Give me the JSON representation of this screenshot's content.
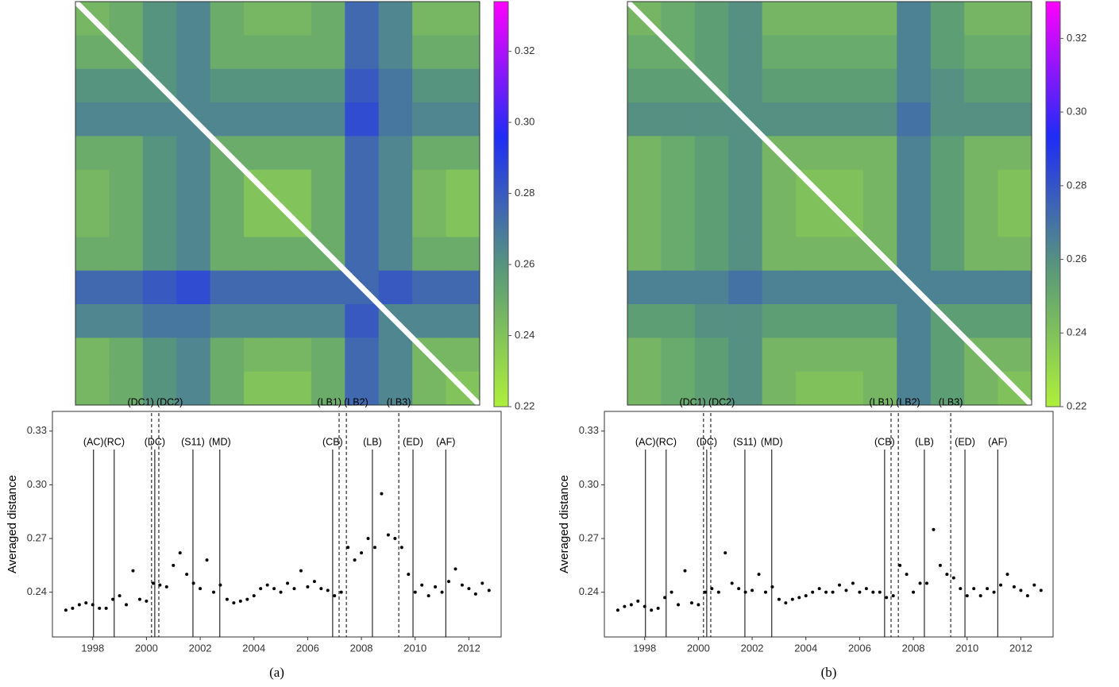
{
  "chart_data": [
    {
      "type": "heatmap",
      "matrix": [
        [
          0.245,
          0.25,
          0.26,
          0.265,
          0.25,
          0.245,
          0.245,
          0.25,
          0.275,
          0.265,
          0.245,
          0.245
        ],
        [
          0.25,
          0.25,
          0.26,
          0.265,
          0.25,
          0.25,
          0.25,
          0.25,
          0.275,
          0.265,
          0.25,
          0.25
        ],
        [
          0.26,
          0.26,
          0.26,
          0.265,
          0.26,
          0.26,
          0.26,
          0.26,
          0.28,
          0.27,
          0.26,
          0.26
        ],
        [
          0.265,
          0.265,
          0.265,
          0.265,
          0.265,
          0.265,
          0.265,
          0.265,
          0.285,
          0.27,
          0.265,
          0.265
        ],
        [
          0.25,
          0.25,
          0.26,
          0.265,
          0.25,
          0.25,
          0.25,
          0.25,
          0.275,
          0.265,
          0.25,
          0.25
        ],
        [
          0.245,
          0.25,
          0.26,
          0.265,
          0.25,
          0.24,
          0.24,
          0.25,
          0.275,
          0.265,
          0.245,
          0.24
        ],
        [
          0.245,
          0.25,
          0.26,
          0.265,
          0.25,
          0.24,
          0.24,
          0.25,
          0.275,
          0.265,
          0.245,
          0.24
        ],
        [
          0.25,
          0.25,
          0.26,
          0.265,
          0.25,
          0.25,
          0.25,
          0.25,
          0.275,
          0.265,
          0.25,
          0.25
        ],
        [
          0.275,
          0.275,
          0.28,
          0.285,
          0.275,
          0.275,
          0.275,
          0.275,
          0.275,
          0.28,
          0.275,
          0.275
        ],
        [
          0.265,
          0.265,
          0.27,
          0.27,
          0.265,
          0.265,
          0.265,
          0.265,
          0.28,
          0.265,
          0.265,
          0.265
        ],
        [
          0.245,
          0.25,
          0.26,
          0.265,
          0.25,
          0.245,
          0.245,
          0.25,
          0.275,
          0.265,
          0.245,
          0.245
        ],
        [
          0.245,
          0.25,
          0.26,
          0.265,
          0.25,
          0.24,
          0.24,
          0.25,
          0.275,
          0.265,
          0.245,
          0.24
        ]
      ],
      "clim": [
        0.22,
        0.334
      ],
      "cticks": [
        0.22,
        0.24,
        0.26,
        0.28,
        {
          "value": 0.3,
          "label": "0.30"
        },
        0.32
      ],
      "colors": [
        "#aef03a",
        "#5a9a78",
        "#1f2cf5",
        "#ff00ff"
      ]
    },
    {
      "type": "scatter",
      "ylabel": "Averaged distance",
      "caption": "(a)",
      "color": "#000000",
      "xlim": [
        1996.5,
        2013.2
      ],
      "xticks": [
        1998,
        2000,
        2002,
        2004,
        2006,
        2008,
        2010,
        2012
      ],
      "ylim": [
        0.215,
        0.341
      ],
      "yticks": [
        0.24,
        0.27,
        {
          "value": 0.3,
          "label": "0.30"
        },
        0.33
      ],
      "x": [
        1997,
        1997.25,
        1997.5,
        1997.75,
        1998,
        1998.25,
        1998.5,
        1998.75,
        1999,
        1999.25,
        1999.5,
        1999.75,
        2000,
        2000.25,
        2000.5,
        2000.75,
        2001,
        2001.25,
        2001.5,
        2001.75,
        2002,
        2002.25,
        2002.5,
        2002.75,
        2003,
        2003.25,
        2003.5,
        2003.75,
        2004,
        2004.25,
        2004.5,
        2004.75,
        2005,
        2005.25,
        2005.5,
        2005.75,
        2006,
        2006.25,
        2006.5,
        2006.75,
        2007,
        2007.25,
        2007.5,
        2007.75,
        2008,
        2008.25,
        2008.5,
        2008.75,
        2009,
        2009.25,
        2009.5,
        2009.75,
        2010,
        2010.25,
        2010.5,
        2010.75,
        2011,
        2011.25,
        2011.5,
        2011.75,
        2012,
        2012.25,
        2012.5,
        2012.75
      ],
      "values": [
        0.23,
        0.231,
        0.233,
        0.234,
        0.233,
        0.231,
        0.231,
        0.236,
        0.238,
        0.233,
        0.252,
        0.236,
        0.235,
        0.245,
        0.244,
        0.243,
        0.255,
        0.262,
        0.25,
        0.245,
        0.242,
        0.258,
        0.24,
        0.244,
        0.236,
        0.234,
        0.235,
        0.236,
        0.238,
        0.242,
        0.244,
        0.242,
        0.24,
        0.245,
        0.242,
        0.252,
        0.243,
        0.246,
        0.242,
        0.241,
        0.238,
        0.24,
        0.265,
        0.258,
        0.262,
        0.27,
        0.265,
        0.295,
        0.272,
        0.27,
        0.265,
        0.25,
        0.24,
        0.244,
        0.238,
        0.243,
        0.24,
        0.246,
        0.253,
        0.244,
        0.242,
        0.239,
        0.245,
        0.241
      ],
      "events": [
        {
          "label": "(AC)",
          "x": 1998.03,
          "style": "solid"
        },
        {
          "label": "(RC)",
          "x": 1998.8,
          "style": "solid"
        },
        {
          "label": "(DC1)",
          "x": 2000.19,
          "style": "dashed"
        },
        {
          "label": "(DC)",
          "x": 2000.31,
          "style": "solid"
        },
        {
          "label": "(DC2)",
          "x": 2000.46,
          "style": "dashed"
        },
        {
          "label": "(S11)",
          "x": 2001.73,
          "style": "solid"
        },
        {
          "label": "(MD)",
          "x": 2002.73,
          "style": "solid"
        },
        {
          "label": "(CB)",
          "x": 2006.93,
          "style": "solid"
        },
        {
          "label": "(LB1)",
          "x": 2007.17,
          "style": "dashed"
        },
        {
          "label": "(LB2)",
          "x": 2007.44,
          "style": "dashed"
        },
        {
          "label": "(LB)",
          "x": 2008.41,
          "style": "solid"
        },
        {
          "label": "(LB3)",
          "x": 2009.39,
          "style": "dashed"
        },
        {
          "label": "(ED)",
          "x": 2009.92,
          "style": "solid"
        },
        {
          "label": "(AF)",
          "x": 2011.14,
          "style": "solid"
        }
      ]
    },
    {
      "type": "heatmap",
      "matrix": [
        [
          0.245,
          0.25,
          0.255,
          0.26,
          0.245,
          0.245,
          0.245,
          0.245,
          0.265,
          0.255,
          0.245,
          0.245
        ],
        [
          0.25,
          0.25,
          0.255,
          0.26,
          0.25,
          0.25,
          0.25,
          0.25,
          0.265,
          0.255,
          0.25,
          0.25
        ],
        [
          0.255,
          0.255,
          0.255,
          0.26,
          0.255,
          0.255,
          0.255,
          0.255,
          0.265,
          0.26,
          0.255,
          0.255
        ],
        [
          0.26,
          0.26,
          0.26,
          0.26,
          0.26,
          0.26,
          0.26,
          0.26,
          0.27,
          0.26,
          0.26,
          0.26
        ],
        [
          0.245,
          0.25,
          0.255,
          0.26,
          0.245,
          0.245,
          0.245,
          0.245,
          0.265,
          0.255,
          0.245,
          0.245
        ],
        [
          0.245,
          0.25,
          0.255,
          0.26,
          0.245,
          0.24,
          0.24,
          0.245,
          0.265,
          0.255,
          0.245,
          0.24
        ],
        [
          0.245,
          0.25,
          0.255,
          0.26,
          0.245,
          0.24,
          0.24,
          0.245,
          0.265,
          0.255,
          0.245,
          0.24
        ],
        [
          0.245,
          0.25,
          0.255,
          0.26,
          0.245,
          0.245,
          0.245,
          0.245,
          0.265,
          0.255,
          0.245,
          0.245
        ],
        [
          0.265,
          0.265,
          0.265,
          0.27,
          0.265,
          0.265,
          0.265,
          0.265,
          0.265,
          0.265,
          0.265,
          0.265
        ],
        [
          0.255,
          0.255,
          0.26,
          0.26,
          0.255,
          0.255,
          0.255,
          0.255,
          0.265,
          0.255,
          0.255,
          0.255
        ],
        [
          0.245,
          0.25,
          0.255,
          0.26,
          0.245,
          0.245,
          0.245,
          0.245,
          0.265,
          0.255,
          0.245,
          0.245
        ],
        [
          0.245,
          0.25,
          0.255,
          0.26,
          0.245,
          0.24,
          0.24,
          0.245,
          0.265,
          0.255,
          0.245,
          0.24
        ]
      ],
      "clim": [
        0.22,
        0.33
      ],
      "cticks": [
        0.22,
        0.24,
        0.26,
        0.28,
        {
          "value": 0.3,
          "label": "0.30"
        },
        0.32
      ],
      "colors": [
        "#aef03a",
        "#5a9a78",
        "#1f2cf5",
        "#ff00ff"
      ]
    },
    {
      "type": "scatter",
      "ylabel": "Averaged distance",
      "caption": "(b)",
      "color": "#000000",
      "xlim": [
        1996.5,
        2013.2
      ],
      "xticks": [
        1998,
        2000,
        2002,
        2004,
        2006,
        2008,
        2010,
        2012
      ],
      "ylim": [
        0.215,
        0.341
      ],
      "yticks": [
        0.24,
        0.27,
        {
          "value": 0.3,
          "label": "0.30"
        },
        0.33
      ],
      "x": [
        1997,
        1997.25,
        1997.5,
        1997.75,
        1998,
        1998.25,
        1998.5,
        1998.75,
        1999,
        1999.25,
        1999.5,
        1999.75,
        2000,
        2000.25,
        2000.5,
        2000.75,
        2001,
        2001.25,
        2001.5,
        2001.75,
        2002,
        2002.25,
        2002.5,
        2002.75,
        2003,
        2003.25,
        2003.5,
        2003.75,
        2004,
        2004.25,
        2004.5,
        2004.75,
        2005,
        2005.25,
        2005.5,
        2005.75,
        2006,
        2006.25,
        2006.5,
        2006.75,
        2007,
        2007.25,
        2007.5,
        2007.75,
        2008,
        2008.25,
        2008.5,
        2008.75,
        2009,
        2009.25,
        2009.5,
        2009.75,
        2010,
        2010.25,
        2010.5,
        2010.75,
        2011,
        2011.25,
        2011.5,
        2011.75,
        2012,
        2012.25,
        2012.5,
        2012.75
      ],
      "values": [
        0.23,
        0.232,
        0.233,
        0.235,
        0.232,
        0.23,
        0.231,
        0.237,
        0.24,
        0.233,
        0.252,
        0.234,
        0.233,
        0.24,
        0.242,
        0.24,
        0.262,
        0.245,
        0.242,
        0.24,
        0.241,
        0.25,
        0.24,
        0.243,
        0.236,
        0.234,
        0.236,
        0.237,
        0.238,
        0.24,
        0.242,
        0.24,
        0.24,
        0.244,
        0.241,
        0.245,
        0.24,
        0.242,
        0.24,
        0.24,
        0.237,
        0.238,
        0.255,
        0.25,
        0.24,
        0.245,
        0.245,
        0.275,
        0.255,
        0.25,
        0.248,
        0.242,
        0.238,
        0.242,
        0.238,
        0.242,
        0.24,
        0.244,
        0.25,
        0.243,
        0.241,
        0.238,
        0.244,
        0.241
      ],
      "events": [
        {
          "label": "(AC)",
          "x": 1998.03,
          "style": "solid"
        },
        {
          "label": "(RC)",
          "x": 1998.8,
          "style": "solid"
        },
        {
          "label": "(DC1)",
          "x": 2000.19,
          "style": "dashed"
        },
        {
          "label": "(DC)",
          "x": 2000.31,
          "style": "solid"
        },
        {
          "label": "(DC2)",
          "x": 2000.46,
          "style": "dashed"
        },
        {
          "label": "(S11)",
          "x": 2001.73,
          "style": "solid"
        },
        {
          "label": "(MD)",
          "x": 2002.73,
          "style": "solid"
        },
        {
          "label": "(CB)",
          "x": 2006.93,
          "style": "solid"
        },
        {
          "label": "(LB1)",
          "x": 2007.17,
          "style": "dashed"
        },
        {
          "label": "(LB2)",
          "x": 2007.44,
          "style": "dashed"
        },
        {
          "label": "(LB)",
          "x": 2008.41,
          "style": "solid"
        },
        {
          "label": "(LB3)",
          "x": 2009.39,
          "style": "dashed"
        },
        {
          "label": "(ED)",
          "x": 2009.92,
          "style": "solid"
        },
        {
          "label": "(AF)",
          "x": 2011.14,
          "style": "solid"
        }
      ]
    }
  ]
}
